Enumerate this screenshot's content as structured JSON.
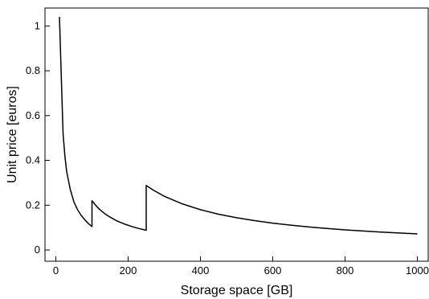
{
  "chart_data": {
    "type": "line",
    "xlabel": "Storage space [GB]",
    "ylabel": "Unit price [euros]",
    "xlim": [
      -30,
      1030
    ],
    "ylim": [
      -0.05,
      1.08
    ],
    "x_ticks": [
      0,
      200,
      400,
      600,
      800,
      1000
    ],
    "x_tick_labels": [
      "0",
      "200",
      "400",
      "600",
      "800",
      "1000"
    ],
    "y_ticks": [
      0,
      0.2,
      0.4,
      0.6,
      0.8,
      1
    ],
    "y_tick_labels": [
      "0",
      "0.2",
      "0.4",
      "0.6",
      "0.8",
      "1"
    ],
    "grid": false,
    "line_color": "#000000",
    "series": [
      {
        "x": [
          10,
          20,
          25,
          30,
          35,
          40,
          50,
          60,
          70,
          80,
          90,
          100,
          100,
          110,
          120,
          130,
          140,
          150,
          170,
          190,
          210,
          230,
          250,
          250,
          270,
          300,
          350,
          400,
          450,
          500,
          550,
          600,
          650,
          700,
          750,
          800,
          850,
          900,
          950,
          1000
        ],
        "y": [
          1.04,
          0.52,
          0.42,
          0.35,
          0.31,
          0.27,
          0.215,
          0.18,
          0.155,
          0.135,
          0.118,
          0.105,
          0.22,
          0.2,
          0.183,
          0.169,
          0.157,
          0.147,
          0.129,
          0.116,
          0.105,
          0.096,
          0.088,
          0.288,
          0.267,
          0.24,
          0.206,
          0.18,
          0.16,
          0.144,
          0.131,
          0.12,
          0.111,
          0.103,
          0.096,
          0.09,
          0.085,
          0.08,
          0.076,
          0.072
        ]
      }
    ]
  }
}
